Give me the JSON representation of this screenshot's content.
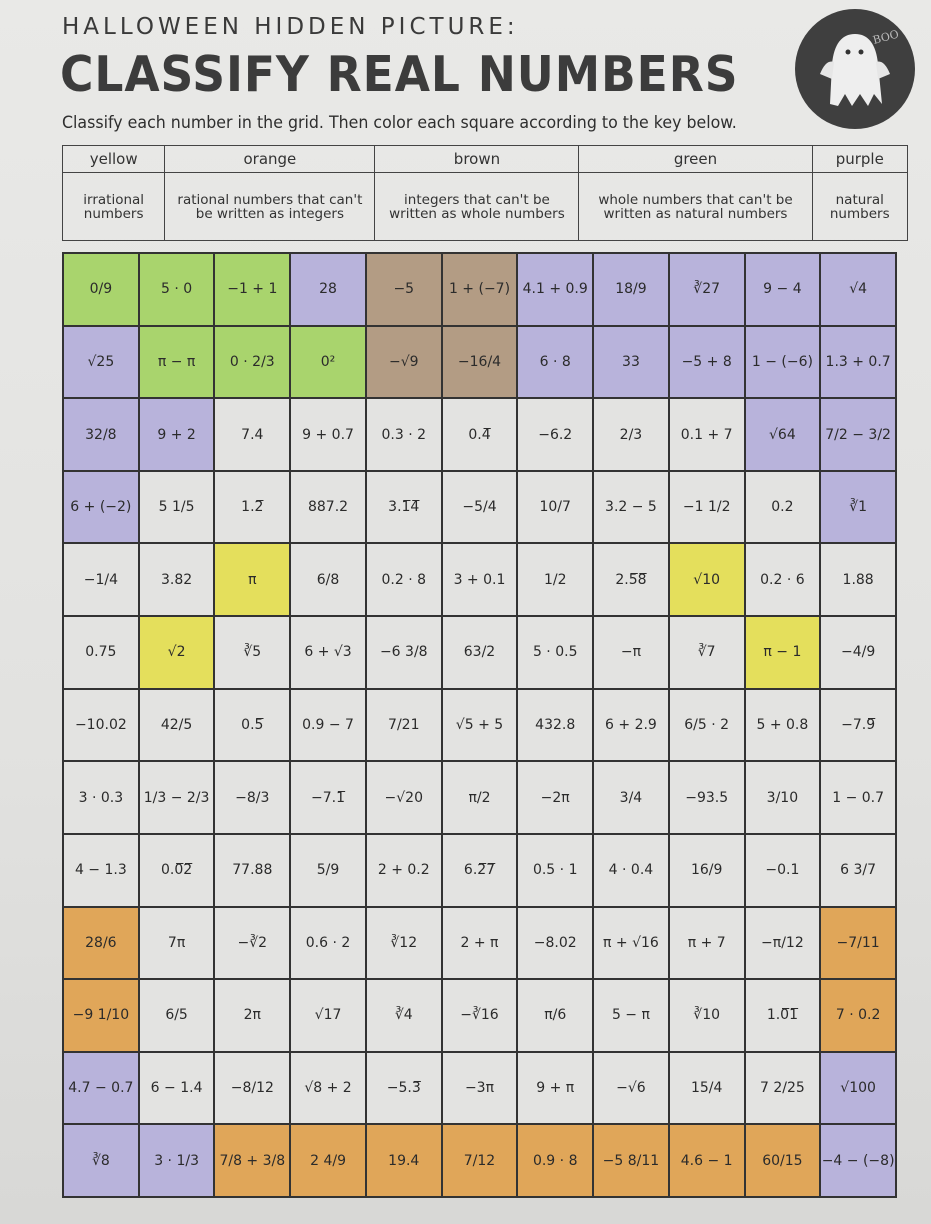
{
  "header": {
    "kicker": "HALLOWEEN HIDDEN PICTURE:",
    "title": "CLASSIFY REAL NUMBERS",
    "instructions": "Classify each number in the grid. Then color each square according to the key below.",
    "badge_text": "BOO",
    "badge_icon": "ghost-icon"
  },
  "key": [
    {
      "color": "yellow",
      "meaning": "irrational numbers",
      "hex": "#e4df5c"
    },
    {
      "color": "orange",
      "meaning": "rational numbers that can't be written as integers",
      "hex": "#e0a659"
    },
    {
      "color": "brown",
      "meaning": "integers that can't be written as whole numbers",
      "hex": "#b39c84"
    },
    {
      "color": "green",
      "meaning": "whole numbers that can't be written as natural numbers",
      "hex": "#a9d46d"
    },
    {
      "color": "purple",
      "meaning": "natural numbers",
      "hex": "#b8b3db"
    }
  ],
  "color_codes": {
    "y": "yellow",
    "o": "orange",
    "b": "brown",
    "g": "green",
    "p": "purple",
    "w": "uncolored"
  },
  "grid": [
    {
      "colors": "gggpbbppppp",
      "cells": [
        "0/9",
        "5 · 0",
        "−1 + 1",
        "28",
        "−5",
        "1 + (−7)",
        "4.1 + 0.9",
        "18/9",
        "∛27",
        "9 − 4",
        "√4"
      ]
    },
    {
      "colors": "pgggbbppppp",
      "cells": [
        "√25",
        "π − π",
        "0 · 2/3",
        "0²",
        "−√9",
        "−16/4",
        "6 · 8",
        "33",
        "−5 + 8",
        "1 − (−6)",
        "1.3 + 0.7"
      ]
    },
    {
      "colors": "ppwwwwwwwpp",
      "cells": [
        "32/8",
        "9 + 2",
        "7.4",
        "9 + 0.7",
        "0.3 · 2",
        "0.4̅",
        "−6.2",
        "2/3",
        "0.1 + 7",
        "√64",
        "7/2 − 3/2"
      ]
    },
    {
      "colors": "pwwwwwwwwwp",
      "cells": [
        "6 + (−2)",
        "5 1/5",
        "1.2̅",
        "887.2",
        "3.1̅4̅",
        "−5/4",
        "10/7",
        "3.2 − 5",
        "−1 1/2",
        "0.2",
        "∛1"
      ]
    },
    {
      "colors": "wwywwwwwyww",
      "cells": [
        "−1/4",
        "3.82",
        "π",
        "6/8",
        "0.2 · 8",
        "3 + 0.1",
        "1/2",
        "2.5̅8̅",
        "√10",
        "0.2 · 6",
        "1.88"
      ]
    },
    {
      "colors": "wywwwwwwwyw",
      "cells": [
        "0.75",
        "√2",
        "∛5",
        "6 + √3",
        "−6 3/8",
        "63/2",
        "5 · 0.5",
        "−π",
        "∛7",
        "π − 1",
        "−4/9"
      ]
    },
    {
      "colors": "wwwwwwwwwww",
      "cells": [
        "−10.02",
        "42/5",
        "0.5̅",
        "0.9 − 7",
        "7/21",
        "√5 + 5",
        "432.8",
        "6 + 2.9",
        "6/5 · 2",
        "5 + 0.8",
        "−7.9̅"
      ]
    },
    {
      "colors": "wwwwwwwwwww",
      "cells": [
        "3 · 0.3",
        "1/3 − 2/3",
        "−8/3",
        "−7.1̅",
        "−√20",
        "π/2",
        "−2π",
        "3/4",
        "−93.5",
        "3/10",
        "1 − 0.7"
      ]
    },
    {
      "colors": "wwwwwwwwwww",
      "cells": [
        "4 − 1.3",
        "0.0̅2̅",
        "77.88",
        "5/9",
        "2 + 0.2",
        "6.2̅7̅",
        "0.5 · 1",
        "4 · 0.4",
        "16/9",
        "−0.1",
        "6 3/7"
      ]
    },
    {
      "colors": "owwwwwwwwwo",
      "cells": [
        "28/6",
        "7π",
        "−∛2",
        "0.6 · 2",
        "∛12",
        "2 + π",
        "−8.02",
        "π + √16",
        "π + 7",
        "−π/12",
        "−7/11"
      ]
    },
    {
      "colors": "owwwwwwwwwo",
      "cells": [
        "−9 1/10",
        "6/5",
        "2π",
        "√17",
        "∛4",
        "−∛16",
        "π/6",
        "5 − π",
        "∛10",
        "1.0̅1̅",
        "7 · 0.2"
      ]
    },
    {
      "colors": "pwwwwwwwwwp",
      "cells": [
        "4.7 − 0.7",
        "6 − 1.4",
        "−8/12",
        "√8 + 2",
        "−5.3̅",
        "−3π",
        "9 + π",
        "−√6",
        "15/4",
        "7 2/25",
        "√100"
      ]
    },
    {
      "colors": "ppoooooooop",
      "cells": [
        "∛8",
        "3 · 1/3",
        "7/8 + 3/8",
        "2 4/9",
        "19.4",
        "7/12",
        "0.9 · 8",
        "−5 8/11",
        "4.6 − 1",
        "60/15",
        "−4 − (−8)"
      ]
    }
  ]
}
